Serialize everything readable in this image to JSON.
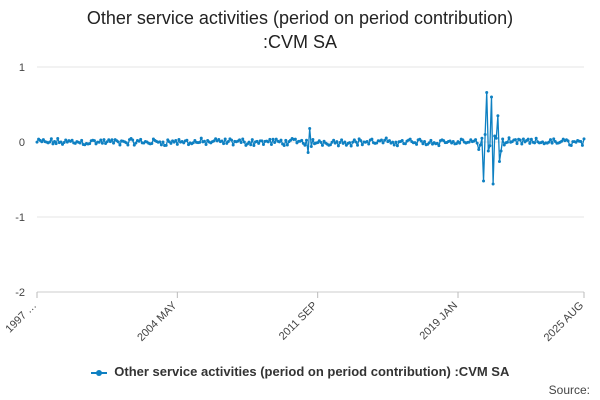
{
  "chart_data": {
    "type": "line",
    "title_line1": "Other service activities (period on period contribution)",
    "title_line2": ":CVM SA",
    "x_tick_labels": [
      "1997 …",
      "2004 MAY",
      "2011 SEP",
      "2019 JAN",
      "2025 AUG"
    ],
    "x_tick_positions": [
      0,
      88,
      176,
      264,
      343
    ],
    "y_tick_labels": [
      "1",
      "0",
      "-1",
      "-2"
    ],
    "ylim": [
      -2,
      1
    ],
    "yticks": [
      1,
      0,
      -1,
      -2
    ],
    "x_count": 344,
    "series": [
      {
        "name": "Other service activities (period on period contribution) :CVM SA",
        "color": "#0e80c2",
        "baseline_range": [
          -0.06,
          0.06
        ],
        "notable_points": [
          {
            "x": 170,
            "y": -0.14
          },
          {
            "x": 171,
            "y": 0.18
          },
          {
            "x": 172,
            "y": -0.06
          },
          {
            "x": 277,
            "y": -0.1
          },
          {
            "x": 278,
            "y": -0.04
          },
          {
            "x": 279,
            "y": 0.05
          },
          {
            "x": 280,
            "y": -0.52
          },
          {
            "x": 281,
            "y": 0.1
          },
          {
            "x": 282,
            "y": 0.66
          },
          {
            "x": 283,
            "y": -0.12
          },
          {
            "x": 284,
            "y": -0.05
          },
          {
            "x": 285,
            "y": 0.6
          },
          {
            "x": 286,
            "y": -0.56
          },
          {
            "x": 287,
            "y": 0.08
          },
          {
            "x": 288,
            "y": 0.05
          },
          {
            "x": 289,
            "y": 0.35
          },
          {
            "x": 290,
            "y": -0.26
          },
          {
            "x": 291,
            "y": -0.12
          },
          {
            "x": 292,
            "y": 0.04
          },
          {
            "x": 293,
            "y": -0.04
          }
        ]
      }
    ],
    "legend": "Other service activities (period on period contribution) :CVM SA",
    "source_label": "Source:"
  }
}
